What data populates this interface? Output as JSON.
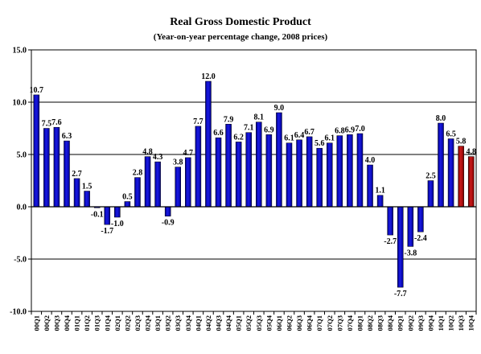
{
  "chart_data": {
    "type": "bar",
    "title": "Real Gross Domestic Product",
    "subtitle": "(Year-on-year percentage change, 2008 prices)",
    "xlabel": "",
    "ylabel": "",
    "ylim": [
      -10.0,
      15.0
    ],
    "yticks": [
      "15.0",
      "10.0",
      "5.0",
      "0.0",
      "-5.0",
      "-10.0"
    ],
    "ytick_values": [
      15,
      10,
      5,
      0,
      -5,
      -10
    ],
    "grid": true,
    "legend": "none",
    "colors": {
      "actual": "#1a1ae6",
      "forecast": "#cc1a1a"
    },
    "categories": [
      "00Q1",
      "00Q2",
      "00Q3",
      "00Q4",
      "01Q1",
      "01Q2",
      "01Q3",
      "01Q4",
      "02Q1",
      "02Q2",
      "02Q3",
      "02Q4",
      "03Q1",
      "03Q2",
      "03Q3",
      "03Q4",
      "04Q1",
      "04Q2",
      "04Q3",
      "04Q4",
      "05Q1",
      "05Q2",
      "05Q3",
      "05Q4",
      "06Q1",
      "06Q2",
      "06Q3",
      "06Q4",
      "07Q1",
      "07Q2",
      "07Q3",
      "07Q4",
      "08Q1",
      "08Q2",
      "08Q3",
      "08Q4",
      "09Q1",
      "09Q2",
      "09Q3",
      "09Q4",
      "10Q1",
      "10Q2",
      "10Q3",
      "10Q4"
    ],
    "values": [
      10.7,
      7.5,
      7.6,
      6.3,
      2.7,
      1.5,
      -0.1,
      -1.7,
      -1.0,
      0.5,
      2.8,
      4.8,
      4.3,
      -0.9,
      3.8,
      4.7,
      7.7,
      12.0,
      6.6,
      7.9,
      6.2,
      7.1,
      8.1,
      6.9,
      9.0,
      6.1,
      6.4,
      6.7,
      5.6,
      6.1,
      6.8,
      6.9,
      7.0,
      4.0,
      1.1,
      -2.7,
      -7.7,
      -3.8,
      -2.4,
      2.5,
      8.0,
      6.5,
      5.8,
      4.8
    ],
    "labels": [
      "10.7",
      "7.5",
      "7.6",
      "6.3",
      "2.7",
      "1.5",
      "-0.1",
      "-1.7",
      "-1.0",
      "0.5",
      "2.8",
      "4.8",
      "4.3",
      "-0.9",
      "3.8",
      "4.7",
      "7.7",
      "12.0",
      "6.6",
      "7.9",
      "6.2",
      "7.1",
      "8.1",
      "6.9",
      "9.0",
      "6.1",
      "6.4",
      "6.7",
      "5.6",
      "6.1",
      "6.8",
      "6.9",
      "7.0",
      "4.0",
      "1.1",
      "-2.7",
      "-7.7",
      "-3.8",
      "-2.4",
      "2.5",
      "8.0",
      "6.5",
      "5.8",
      "4.8"
    ],
    "forecast_from_index": 42
  }
}
